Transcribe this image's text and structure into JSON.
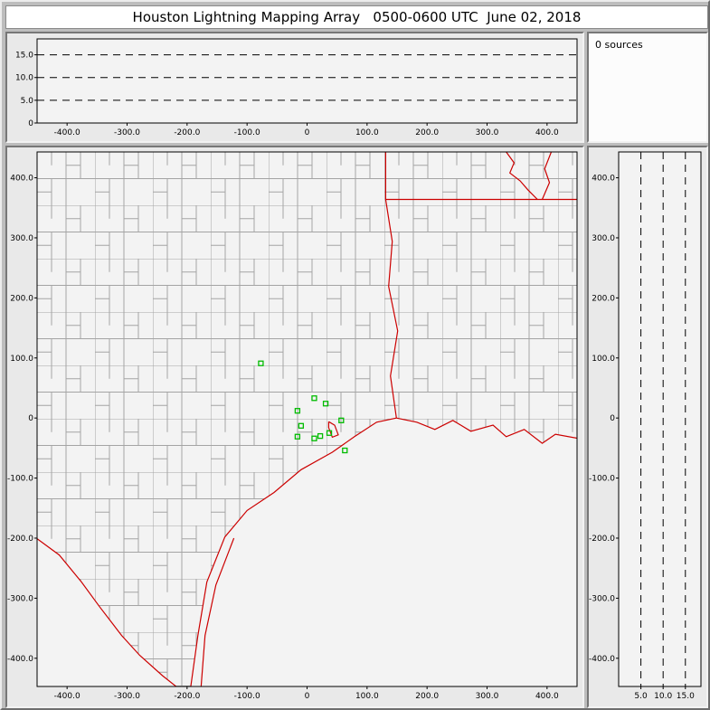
{
  "title": "Houston Lightning Mapping Array   0500-0600 UTC  June 02, 2018",
  "status": {
    "sources_label": "0 sources"
  },
  "colors": {
    "window_bg": "#bdbdbd",
    "panel_bg": "#e9e9e9",
    "plot_bg": "#f3f3f3",
    "titlebar_bg": "#ffffff",
    "axis": "#000000",
    "county_line": "#a4a4a4",
    "state_line": "#cc0000",
    "station": "#00bb00"
  },
  "chart_data": [
    {
      "id": "alt_vs_ew",
      "type": "scatter",
      "description": "Altitude (km) vs east-west distance (km); empty because 0 sources",
      "xlim": [
        -450,
        450
      ],
      "ylim": [
        0,
        18.5
      ],
      "x_ticks": [
        {
          "v": -400,
          "label": "-400.0"
        },
        {
          "v": -300,
          "label": "-300.0"
        },
        {
          "v": -200,
          "label": "-200.0"
        },
        {
          "v": -100,
          "label": "-100.0"
        },
        {
          "v": 0,
          "label": "0"
        },
        {
          "v": 100,
          "label": "100.0"
        },
        {
          "v": 200,
          "label": "200.0"
        },
        {
          "v": 300,
          "label": "300.0"
        },
        {
          "v": 400,
          "label": "400.0"
        }
      ],
      "y_ticks": [
        {
          "v": 15,
          "label": "15.0"
        },
        {
          "v": 10,
          "label": "10.0"
        },
        {
          "v": 5,
          "label": "5.0"
        },
        {
          "v": 0,
          "label": "0"
        }
      ],
      "h_gridlines": [
        5,
        10,
        15
      ],
      "points": []
    },
    {
      "id": "plan_view",
      "type": "scatter",
      "description": "Plan-view map of Texas / Gulf coast with county lines, state borders and LMA station markers; 0 lightning sources",
      "xlim": [
        -450,
        450
      ],
      "ylim": [
        -447,
        443
      ],
      "x_ticks": [
        {
          "v": -400,
          "label": "-400.0"
        },
        {
          "v": -300,
          "label": "-300.0"
        },
        {
          "v": -200,
          "label": "-200.0"
        },
        {
          "v": -100,
          "label": "-100.0"
        },
        {
          "v": 0,
          "label": "0"
        },
        {
          "v": 100,
          "label": "100.0"
        },
        {
          "v": 200,
          "label": "200.0"
        },
        {
          "v": 300,
          "label": "300.0"
        },
        {
          "v": 400,
          "label": "400.0"
        }
      ],
      "y_ticks": [
        {
          "v": 400,
          "label": "400.0"
        },
        {
          "v": 300,
          "label": "300.0"
        },
        {
          "v": 200,
          "label": "200.0"
        },
        {
          "v": 100,
          "label": "100.0"
        },
        {
          "v": 0,
          "label": "0"
        },
        {
          "v": -100,
          "label": "-100.0"
        },
        {
          "v": -200,
          "label": "-200.0"
        },
        {
          "v": -300,
          "label": "-300.0"
        },
        {
          "v": -400,
          "label": "-400.0"
        }
      ],
      "points": [],
      "stations": [
        [
          -77,
          91
        ],
        [
          12,
          33
        ],
        [
          31,
          24
        ],
        [
          -16,
          12
        ],
        [
          57,
          -4
        ],
        [
          -10,
          -13
        ],
        [
          -16,
          -31
        ],
        [
          12,
          -34
        ],
        [
          22,
          -30
        ],
        [
          37,
          -25
        ],
        [
          63,
          -54
        ]
      ],
      "map_layers": {
        "land_polygon": [
          [
            -450,
            443
          ],
          [
            452,
            443
          ],
          [
            452,
            -34
          ],
          [
            414,
            -27
          ],
          [
            392,
            -42
          ],
          [
            362,
            -19
          ],
          [
            332,
            -31
          ],
          [
            310,
            -12
          ],
          [
            273,
            -22
          ],
          [
            243,
            -4
          ],
          [
            213,
            -19
          ],
          [
            183,
            -7
          ],
          [
            149,
            0
          ],
          [
            116,
            -7
          ],
          [
            79,
            -31
          ],
          [
            42,
            -57
          ],
          [
            -10,
            -86
          ],
          [
            -55,
            -124
          ],
          [
            -100,
            -154
          ],
          [
            -137,
            -198
          ],
          [
            -167,
            -273
          ],
          [
            -182,
            -362
          ],
          [
            -197,
            -470
          ],
          [
            -212,
            -452
          ],
          [
            -241,
            -429
          ],
          [
            -279,
            -395
          ],
          [
            -309,
            -362
          ],
          [
            -346,
            -314
          ],
          [
            -376,
            -273
          ],
          [
            -413,
            -228
          ],
          [
            -450,
            -201
          ]
        ],
        "red_lines": [
          {
            "name": "texas-coastline",
            "points": [
              [
                149,
                0
              ],
              [
                116,
                -7
              ],
              [
                79,
                -31
              ],
              [
                42,
                -57
              ],
              [
                -10,
                -86
              ],
              [
                -55,
                -124
              ],
              [
                -100,
                -154
              ],
              [
                -137,
                -198
              ],
              [
                -167,
                -273
              ],
              [
                -182,
                -362
              ],
              [
                -197,
                -470
              ]
            ]
          },
          {
            "name": "louisiana-coastline",
            "points": [
              [
                149,
                0
              ],
              [
                183,
                -7
              ],
              [
                213,
                -19
              ],
              [
                243,
                -4
              ],
              [
                273,
                -22
              ],
              [
                310,
                -12
              ],
              [
                332,
                -31
              ],
              [
                362,
                -19
              ],
              [
                392,
                -42
              ],
              [
                414,
                -27
              ],
              [
                452,
                -34
              ]
            ]
          },
          {
            "name": "rio-grande-border",
            "points": [
              [
                -450,
                -201
              ],
              [
                -413,
                -228
              ],
              [
                -376,
                -273
              ],
              [
                -346,
                -314
              ],
              [
                -309,
                -362
              ],
              [
                -279,
                -395
              ],
              [
                -241,
                -429
              ],
              [
                -212,
                -452
              ],
              [
                -197,
                -470
              ]
            ]
          },
          {
            "name": "padre-island",
            "points": [
              [
                -122,
                -200
              ],
              [
                -152,
                -278
              ],
              [
                -170,
                -362
              ],
              [
                -177,
                -452
              ]
            ]
          },
          {
            "name": "tx-ar-border",
            "points": [
              [
                131,
                443
              ],
              [
                131,
                364
              ]
            ]
          },
          {
            "name": "ar-la-border",
            "points": [
              [
                131,
                364
              ],
              [
                392,
                364
              ]
            ]
          },
          {
            "name": "sabine-tx-la-border",
            "points": [
              [
                131,
                364
              ],
              [
                142,
                294
              ],
              [
                136,
                219
              ],
              [
                151,
                145
              ],
              [
                139,
                70
              ],
              [
                149,
                0
              ]
            ]
          },
          {
            "name": "mississippi-river",
            "points": [
              [
                407,
                443
              ],
              [
                396,
                415
              ],
              [
                404,
                392
              ],
              [
                392,
                364
              ]
            ]
          },
          {
            "name": "red-river",
            "points": [
              [
                332,
                443
              ],
              [
                345,
                425
              ],
              [
                338,
                408
              ],
              [
                355,
                395
              ],
              [
                368,
                380
              ],
              [
                384,
                364
              ]
            ]
          },
          {
            "name": "la-ms-border",
            "points": [
              [
                392,
                364
              ],
              [
                452,
                364
              ]
            ]
          },
          {
            "name": "galveston-bay",
            "points": [
              [
                36,
                -6
              ],
              [
                46,
                -12
              ],
              [
                52,
                -28
              ],
              [
                42,
                -32
              ],
              [
                36,
                -16
              ],
              [
                36,
                -6
              ]
            ]
          }
        ]
      }
    },
    {
      "id": "alt_vs_ns",
      "type": "scatter",
      "description": "North-south distance (km) vs altitude (km); empty because 0 sources",
      "xlim": [
        0,
        18.5
      ],
      "ylim": [
        -447,
        443
      ],
      "x_ticks": [
        {
          "v": 5,
          "label": "5.0"
        },
        {
          "v": 10,
          "label": "10.0"
        },
        {
          "v": 15,
          "label": "15.0"
        }
      ],
      "y_ticks": [
        {
          "v": 400,
          "label": "400.0"
        },
        {
          "v": 300,
          "label": "300.0"
        },
        {
          "v": 200,
          "label": "200.0"
        },
        {
          "v": 100,
          "label": "100.0"
        },
        {
          "v": 0,
          "label": "0"
        },
        {
          "v": -100,
          "label": "-100.0"
        },
        {
          "v": -200,
          "label": "-200.0"
        },
        {
          "v": -300,
          "label": "-300.0"
        },
        {
          "v": -400,
          "label": "-400.0"
        }
      ],
      "v_gridlines": [
        5,
        10,
        15
      ],
      "points": []
    }
  ]
}
